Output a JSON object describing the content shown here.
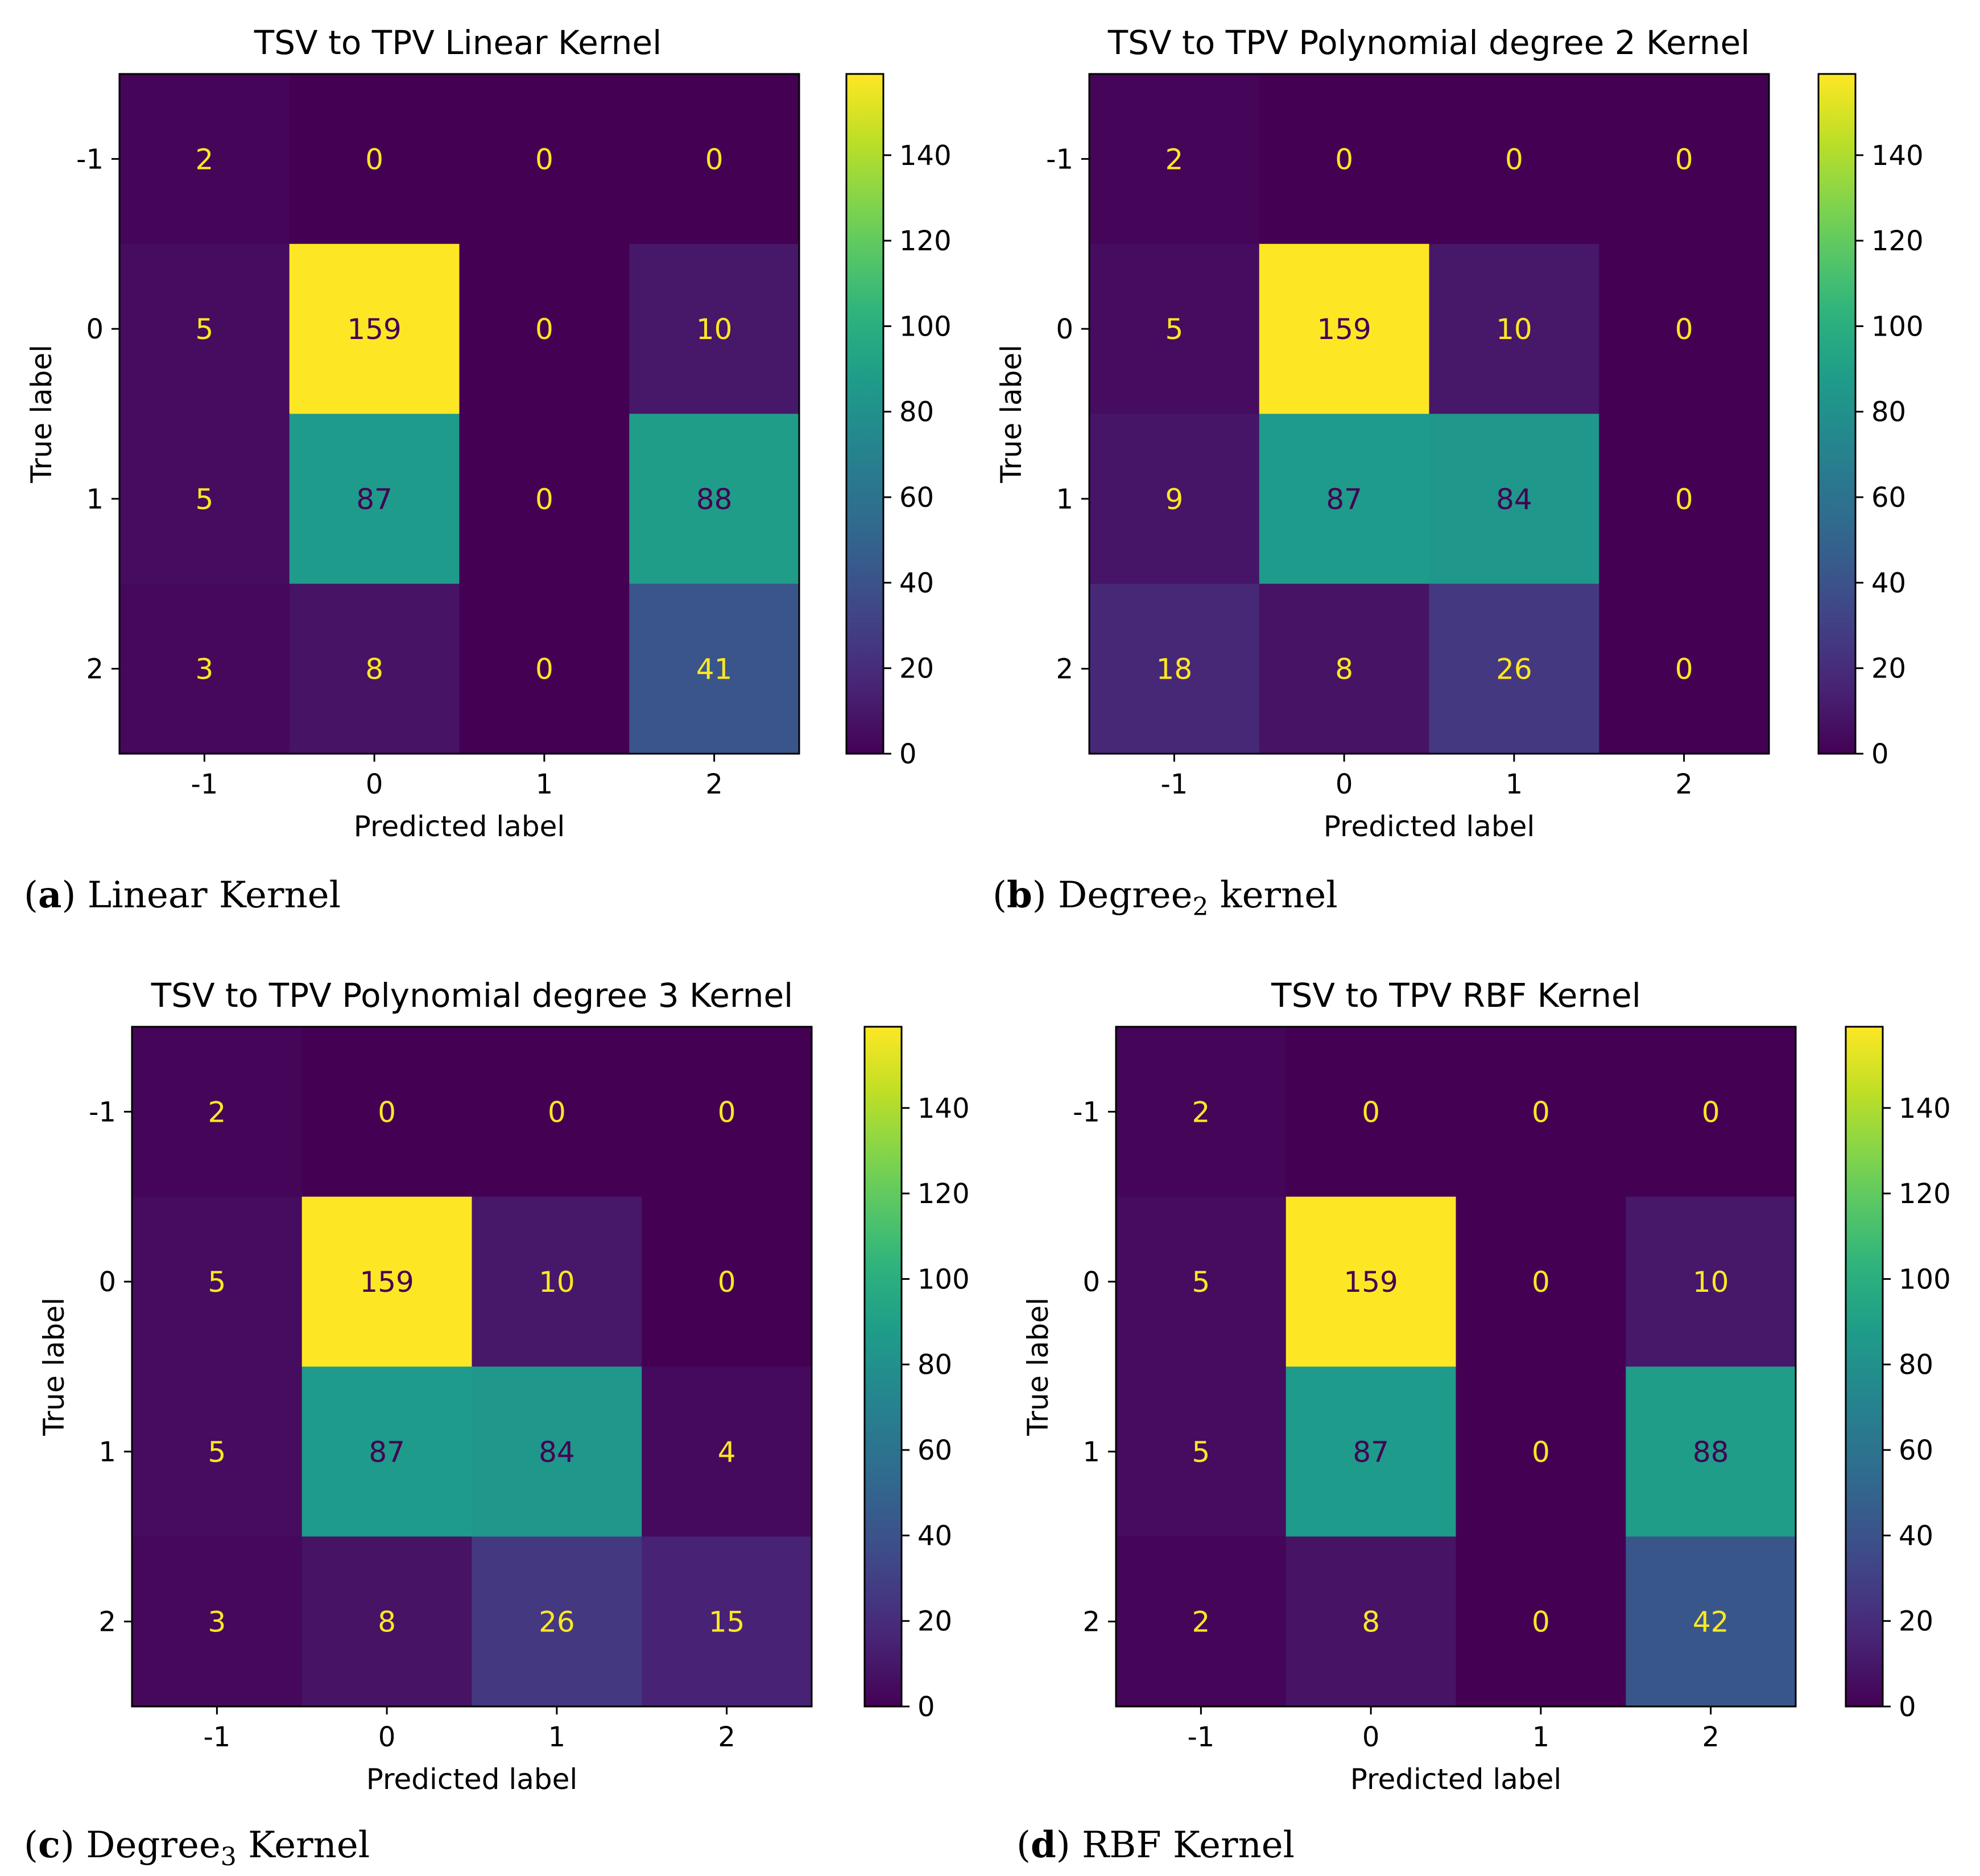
{
  "chart_data": [
    {
      "type": "heatmap",
      "title": "TSV to TPV Linear Kernel",
      "xlabel": "Predicted label",
      "ylabel": "True label",
      "x_categories": [
        "-1",
        "0",
        "1",
        "2"
      ],
      "y_categories": [
        "-1",
        "0",
        "1",
        "2"
      ],
      "values": [
        [
          2,
          0,
          0,
          0
        ],
        [
          5,
          159,
          0,
          10
        ],
        [
          5,
          87,
          0,
          88
        ],
        [
          3,
          8,
          0,
          41
        ]
      ],
      "colorbar": {
        "min": 0,
        "max": 159,
        "ticks": [
          0,
          20,
          40,
          60,
          80,
          100,
          120,
          140
        ],
        "colormap": "viridis"
      },
      "caption": {
        "label": "a",
        "text": "Linear Kernel",
        "subscript": ""
      }
    },
    {
      "type": "heatmap",
      "title": "TSV to TPV Polynomial degree 2 Kernel",
      "xlabel": "Predicted label",
      "ylabel": "True label",
      "x_categories": [
        "-1",
        "0",
        "1",
        "2"
      ],
      "y_categories": [
        "-1",
        "0",
        "1",
        "2"
      ],
      "values": [
        [
          2,
          0,
          0,
          0
        ],
        [
          5,
          159,
          10,
          0
        ],
        [
          9,
          87,
          84,
          0
        ],
        [
          18,
          8,
          26,
          0
        ]
      ],
      "colorbar": {
        "min": 0,
        "max": 159,
        "ticks": [
          0,
          20,
          40,
          60,
          80,
          100,
          120,
          140
        ],
        "colormap": "viridis"
      },
      "caption": {
        "label": "b",
        "text": "Degree",
        "subscript": "2",
        "suffix": " kernel"
      }
    },
    {
      "type": "heatmap",
      "title": "TSV to TPV Polynomial degree 3 Kernel",
      "xlabel": "Predicted label",
      "ylabel": "True label",
      "x_categories": [
        "-1",
        "0",
        "1",
        "2"
      ],
      "y_categories": [
        "-1",
        "0",
        "1",
        "2"
      ],
      "values": [
        [
          2,
          0,
          0,
          0
        ],
        [
          5,
          159,
          10,
          0
        ],
        [
          5,
          87,
          84,
          4
        ],
        [
          3,
          8,
          26,
          15
        ]
      ],
      "colorbar": {
        "min": 0,
        "max": 159,
        "ticks": [
          0,
          20,
          40,
          60,
          80,
          100,
          120,
          140
        ],
        "colormap": "viridis"
      },
      "caption": {
        "label": "c",
        "text": "Degree",
        "subscript": "3",
        "suffix": " Kernel"
      }
    },
    {
      "type": "heatmap",
      "title": "TSV to TPV RBF Kernel",
      "xlabel": "Predicted label",
      "ylabel": "True label",
      "x_categories": [
        "-1",
        "0",
        "1",
        "2"
      ],
      "y_categories": [
        "-1",
        "0",
        "1",
        "2"
      ],
      "values": [
        [
          2,
          0,
          0,
          0
        ],
        [
          5,
          159,
          0,
          10
        ],
        [
          5,
          87,
          0,
          88
        ],
        [
          2,
          8,
          0,
          42
        ]
      ],
      "colorbar": {
        "min": 0,
        "max": 159,
        "ticks": [
          0,
          20,
          40,
          60,
          80,
          100,
          120,
          140
        ],
        "colormap": "viridis"
      },
      "caption": {
        "label": "d",
        "text": "RBF Kernel",
        "subscript": ""
      }
    }
  ],
  "colors": {
    "viridis_low": "#440154",
    "viridis_mid": "#21918c",
    "viridis_high": "#fde725",
    "text_light": "#fde725",
    "text_dark": "#440154",
    "axis": "#000000"
  }
}
